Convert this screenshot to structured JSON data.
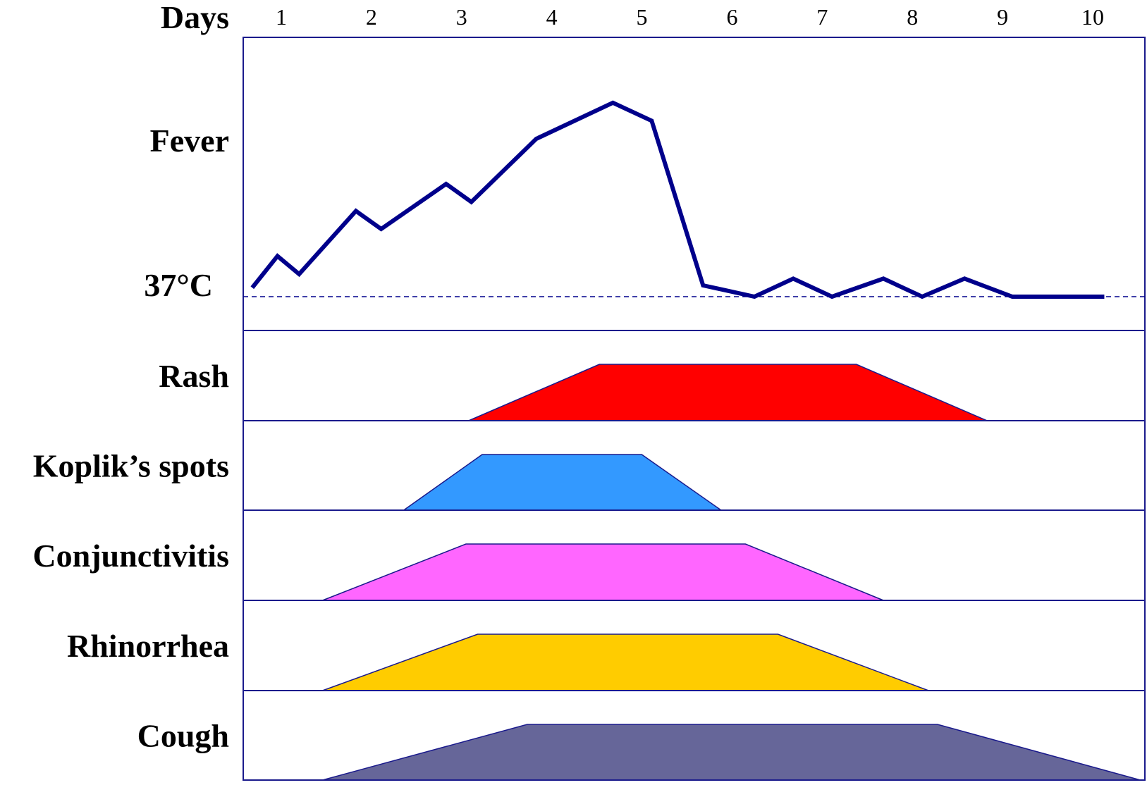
{
  "chart_data": {
    "type": "line",
    "x_axis": {
      "label": "Days",
      "ticks": [
        "1",
        "2",
        "3",
        "4",
        "5",
        "6",
        "7",
        "8",
        "9",
        "10"
      ],
      "range": [
        0.5,
        10.5
      ]
    },
    "fever": {
      "label": "Fever",
      "baseline_label": "37°C",
      "color": "#00008b",
      "y_range": [
        0,
        100
      ],
      "baseline_value": 0,
      "points": [
        [
          0.6,
          4
        ],
        [
          0.88,
          18
        ],
        [
          1.12,
          10
        ],
        [
          1.75,
          38
        ],
        [
          2.03,
          30
        ],
        [
          2.75,
          50
        ],
        [
          3.03,
          42
        ],
        [
          3.75,
          70
        ],
        [
          4.6,
          86
        ],
        [
          5.03,
          78
        ],
        [
          5.6,
          5
        ],
        [
          6.17,
          0
        ],
        [
          6.6,
          8
        ],
        [
          7.03,
          0
        ],
        [
          7.6,
          8
        ],
        [
          8.03,
          0
        ],
        [
          8.5,
          8
        ],
        [
          9.03,
          0
        ],
        [
          10.05,
          0
        ]
      ]
    },
    "symptoms": [
      {
        "label": "Rash",
        "color": "#ff0000",
        "onset": [
          3.0,
          4.45
        ],
        "fade": [
          7.3,
          8.75
        ]
      },
      {
        "label": "Koplik’s spots",
        "color": "#3399ff",
        "onset": [
          2.28,
          3.15
        ],
        "fade": [
          4.92,
          5.8
        ]
      },
      {
        "label": "Conjunctivitis",
        "color": "#ff66ff",
        "onset": [
          1.38,
          2.97
        ],
        "fade": [
          6.07,
          7.6
        ]
      },
      {
        "label": "Rhinorrhea",
        "color": "#ffcc00",
        "onset": [
          1.38,
          3.1
        ],
        "fade": [
          6.43,
          8.1
        ]
      },
      {
        "label": "Cough",
        "color": "#666699",
        "onset": [
          1.38,
          3.65
        ],
        "fade": [
          8.2,
          10.45
        ]
      }
    ],
    "grid": false,
    "legend": "none",
    "line_color": "#00008b"
  }
}
